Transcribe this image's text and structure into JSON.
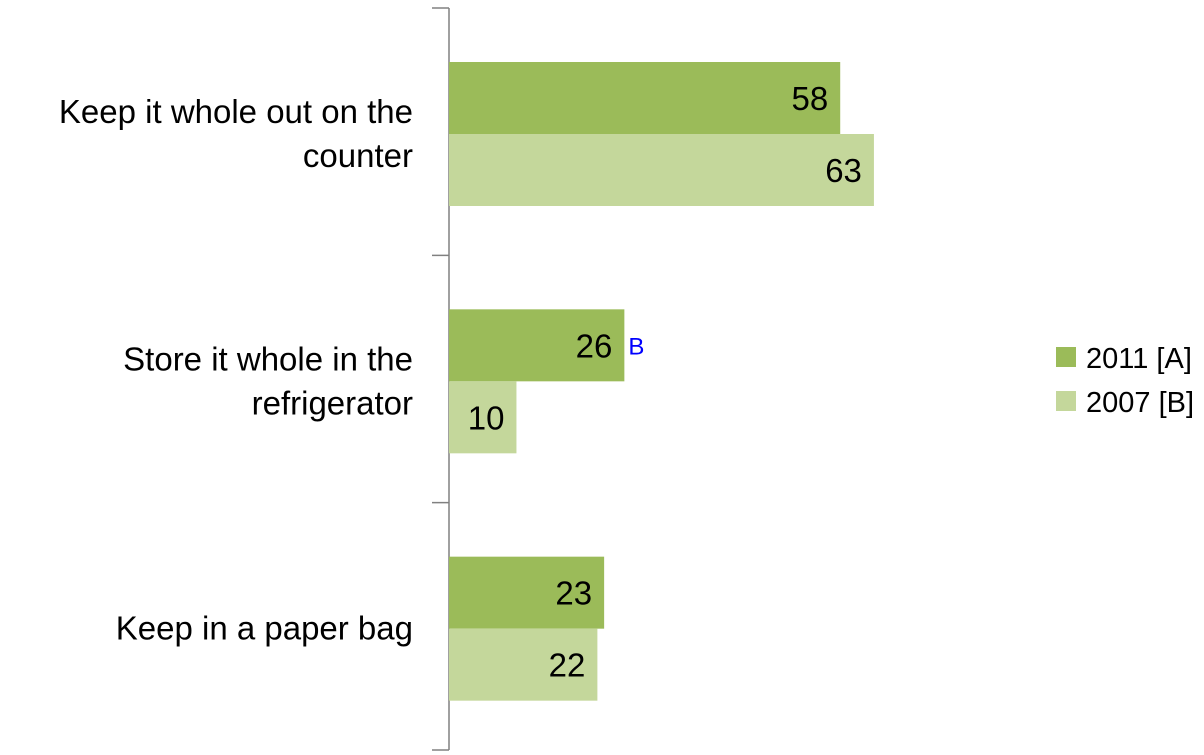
{
  "chart_data": {
    "type": "bar",
    "orientation": "horizontal",
    "categories": [
      [
        "Keep it whole out on the",
        "counter"
      ],
      [
        "Store it whole in the",
        "refrigerator"
      ],
      [
        "Keep in a paper bag"
      ]
    ],
    "series": [
      {
        "name": "2011 [A]",
        "color": "#9bbb59",
        "values": [
          58,
          26,
          23
        ],
        "significance": [
          "",
          "B",
          ""
        ]
      },
      {
        "name": "2007 [B]",
        "color": "#c4d79b",
        "values": [
          63,
          10,
          22
        ],
        "significance": [
          "",
          "",
          ""
        ]
      }
    ],
    "xlim": [
      0,
      100
    ],
    "significance_color": "#0000ff",
    "legend_position": "right",
    "grid": false,
    "title": "",
    "xlabel": "",
    "ylabel": ""
  }
}
